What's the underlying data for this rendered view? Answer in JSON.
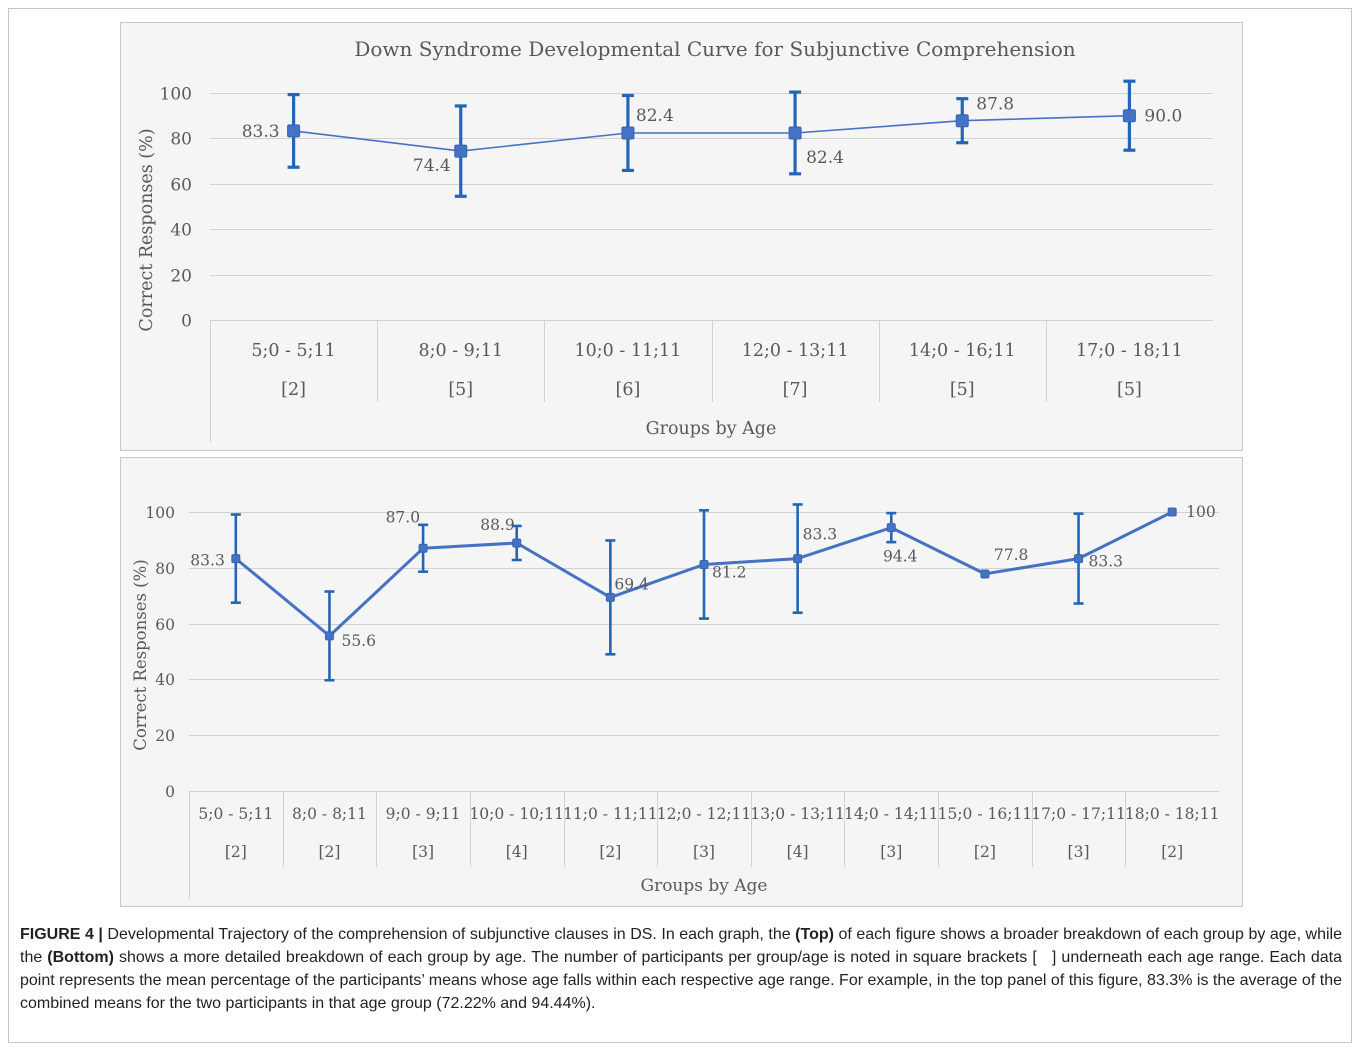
{
  "figure": {
    "caption": {
      "label": "FIGURE 4 |",
      "text_1": " Developmental Trajectory of the comprehension of subjunctive clauses in DS. In each graph, the ",
      "bold_1": "(Top)",
      "text_2": " of each figure shows a broader breakdown of each group by age, while the ",
      "bold_2": "(Bottom)",
      "text_3": " shows a more detailed breakdown of each group by age. The number of participants per group/age is noted in square brackets [   ] underneath each age range. Each data point represents the mean percentage of the participants’ means whose age falls within each respective age range. For example, in the top panel of this figure, 83.3% is the average of the combined means for the two participants in that age group (72.22% and 94.44%)."
    }
  },
  "chart_data": [
    {
      "type": "line",
      "title": "Down Syndrome Developmental Curve for Subjunctive Comprehension",
      "xlabel": "Groups by Age",
      "ylabel": "Correct Responses (%)",
      "ylim": [
        0,
        100
      ],
      "yticks": [
        0,
        20,
        40,
        60,
        80,
        100
      ],
      "categories": [
        "5;0 - 5;11",
        "8;0 - 9;11",
        "10;0 - 11;11",
        "12;0 - 13;11",
        "14;0 - 16;11",
        "17;0 - 18;11"
      ],
      "group_sizes": [
        "[2]",
        "[5]",
        "[6]",
        "[7]",
        "[5]",
        "[5]"
      ],
      "series": [
        {
          "values": [
            83.3,
            74.4,
            82.4,
            82.4,
            87.8,
            90.0
          ],
          "labels": [
            "83.3",
            "74.4",
            "82.4",
            "82.4",
            "87.8",
            "90.0"
          ],
          "error": [
            16.0,
            19.9,
            16.5,
            18.0,
            9.7,
            15.2
          ]
        }
      ],
      "error_bars": true,
      "markers": "square",
      "grid": "horizontal",
      "legend": "none",
      "colors": {
        "line": "#4472C4",
        "marker": "#4472C4",
        "marker_edge": "#3A63AE",
        "error_bar": "#2366B8",
        "text": "#595959",
        "grid": "#D2D2D2",
        "panel": "#F5F5F5",
        "panel_border": "#C8C8C8"
      }
    },
    {
      "type": "line",
      "xlabel": "Groups by Age",
      "ylabel": "Correct Responses (%)",
      "ylim": [
        0,
        100
      ],
      "yticks": [
        0,
        20,
        40,
        60,
        80,
        100
      ],
      "categories": [
        "5;0 - 5;11",
        "8;0 - 8;11",
        "9;0 - 9;11",
        "10;0 - 10;11",
        "11;0 - 11;11",
        "12;0 - 12;11",
        "13;0 - 13;11",
        "14;0 - 14;11",
        "15;0 - 16;11",
        "17;0 - 17;11",
        "18;0 - 18;11"
      ],
      "group_sizes": [
        "[2]",
        "[2]",
        "[3]",
        "[4]",
        "[2]",
        "[3]",
        "[4]",
        "[3]",
        "[2]",
        "[3]",
        "[2]"
      ],
      "series": [
        {
          "values": [
            83.3,
            55.6,
            87.0,
            88.9,
            69.4,
            81.2,
            83.3,
            94.4,
            77.8,
            83.3,
            100
          ],
          "labels": [
            "83.3",
            "55.6",
            "87.0",
            "88.9",
            "69.4",
            "81.2",
            "83.3",
            "94.4",
            "77.8",
            "83.3",
            "100"
          ],
          "error": [
            15.8,
            15.9,
            8.4,
            6.1,
            20.4,
            19.4,
            19.4,
            5.2,
            0,
            16.1,
            0
          ]
        }
      ],
      "error_bars": true,
      "markers": "square",
      "grid": "horizontal",
      "legend": "none",
      "colors": {
        "line": "#4472C4",
        "marker": "#4472C4",
        "marker_edge": "#3A63AE",
        "error_bar": "#2366B8",
        "text": "#595959",
        "grid": "#D2D2D2",
        "panel": "#F5F5F5",
        "panel_border": "#C8C8C8"
      }
    }
  ]
}
